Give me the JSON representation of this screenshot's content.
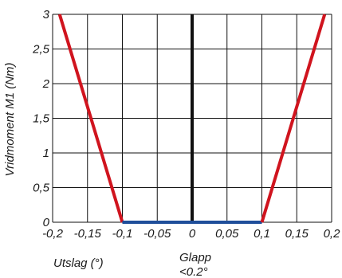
{
  "chart_data": {
    "type": "line",
    "ylabel": "Vridmoment M1 (Nm)",
    "xlabel": "Utslag (°)",
    "annotation": [
      "Glapp",
      "<0.2°"
    ],
    "x_ticks": [
      "-0,2",
      "-0,15",
      "-0,1",
      "-0,05",
      "0",
      "0,05",
      "0,1",
      "0,15",
      "0,2"
    ],
    "y_ticks": [
      "0",
      "0,5",
      "1",
      "1,5",
      "2",
      "2,5",
      "3"
    ],
    "xlim": [
      -0.2,
      0.2
    ],
    "ylim": [
      0,
      3
    ],
    "grid": true,
    "series": [
      {
        "color": "#d0141e",
        "points": [
          [
            -0.19,
            3
          ],
          [
            -0.1,
            0
          ]
        ]
      },
      {
        "color": "#1f4e9a",
        "points": [
          [
            -0.1,
            0
          ],
          [
            0.1,
            0
          ]
        ]
      },
      {
        "color": "#d0141e",
        "points": [
          [
            0.1,
            0
          ],
          [
            0.19,
            3
          ]
        ]
      }
    ],
    "zero_line": {
      "x": 0,
      "color": "#111111"
    }
  }
}
